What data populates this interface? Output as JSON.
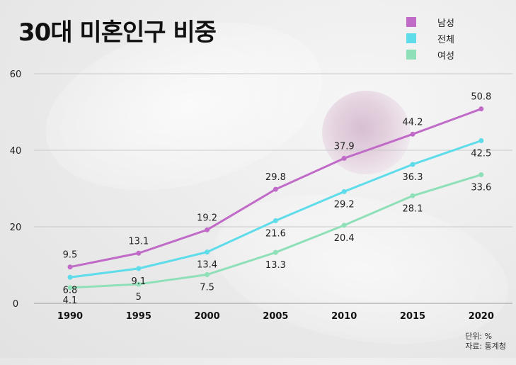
{
  "title": "30대 미혼인구 비중",
  "legend": [
    {
      "label": "남성",
      "color": "#c06bc7"
    },
    {
      "label": "전체",
      "color": "#5fdcea"
    },
    {
      "label": "여성",
      "color": "#8fe0b8"
    }
  ],
  "footer": {
    "unit": "단위: %",
    "source": "자료: 통계청"
  },
  "chart_data": {
    "type": "line",
    "title": "30대 미혼인구 비중",
    "x": [
      "1990",
      "1995",
      "2000",
      "2005",
      "2010",
      "2015",
      "2020"
    ],
    "ylim": [
      0,
      60
    ],
    "yticks": [
      "0",
      "20",
      "40",
      "60"
    ],
    "grid": true,
    "legend_position": "top-right",
    "series": [
      {
        "name": "남성",
        "color": "#c06bc7",
        "values": [
          9.5,
          13.1,
          19.2,
          29.8,
          37.9,
          44.2,
          50.8
        ],
        "labels": [
          "9.5",
          "13.1",
          "19.2",
          "29.8",
          "37.9",
          "44.2",
          "50.8"
        ],
        "label_pos": "above"
      },
      {
        "name": "전체",
        "color": "#5fdcea",
        "values": [
          6.8,
          9.1,
          13.4,
          21.6,
          29.2,
          36.3,
          42.5
        ],
        "labels": [
          "6.8",
          "9.1",
          "13.4",
          "21.6",
          "29.2",
          "36.3",
          "42.5"
        ],
        "label_pos": "below"
      },
      {
        "name": "여성",
        "color": "#8fe0b8",
        "values": [
          4.1,
          5,
          7.5,
          13.3,
          20.4,
          28.1,
          33.6
        ],
        "labels": [
          "4.1",
          "5",
          "7.5",
          "13.3",
          "20.4",
          "28.1",
          "33.6"
        ],
        "label_pos": "below"
      }
    ]
  }
}
